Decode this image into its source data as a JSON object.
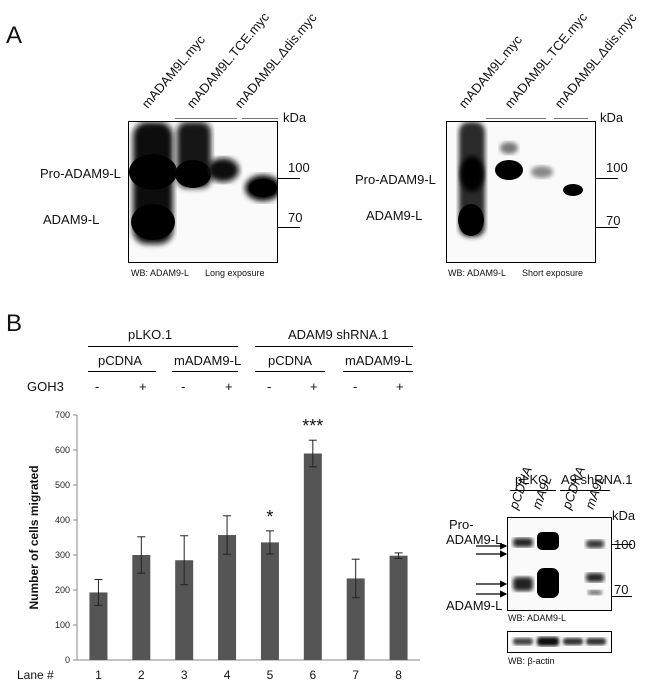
{
  "panelA": {
    "letter": "A",
    "left_blot": {
      "lanes": [
        "mADAM9L.myc",
        "mADAM9L.TCE.myc",
        "mADAM9L.Δdis.myc"
      ],
      "kda": "kDa",
      "marker_100": "100",
      "marker_70": "70",
      "pro_label": "Pro-ADAM9-L",
      "mature_label": "ADAM9-L",
      "wb_label": "WB: ADAM9-L",
      "exposure": "Long exposure"
    },
    "right_blot": {
      "lanes": [
        "mADAM9L.myc",
        "mADAM9L.TCE.myc",
        "mADAM9L.Δdis.myc"
      ],
      "kda": "kDa",
      "marker_100": "100",
      "marker_70": "70",
      "pro_label": "Pro-ADAM9-L",
      "mature_label": "ADAM9-L",
      "wb_label": "WB: ADAM9-L",
      "exposure": "Short exposure"
    }
  },
  "panelB": {
    "letter": "B",
    "header": {
      "group1": "pLKO.1",
      "group2": "ADAM9 shRNA.1",
      "sub": [
        "pCDNA",
        "mADAM9-L",
        "pCDNA",
        "mADAM9-L"
      ],
      "goh3_label": "GOH3",
      "goh3_signs": [
        "-",
        "+",
        "-",
        "+",
        "-",
        "+",
        "-",
        "+"
      ]
    },
    "small_blot": {
      "group1": "pLKO",
      "group2": "A9 shRNA.1",
      "lanes": [
        "pCDNA",
        "mA9L",
        "pCDNA",
        "mA9L"
      ],
      "kda": "kDa",
      "marker_100": "100",
      "marker_70": "70",
      "pro_label_1": "Pro-",
      "pro_label_2": "ADAM9-L",
      "mature_label": "ADAM9-L",
      "wb_label": "WB: ADAM9-L",
      "actin_label": "WB: β-actin"
    }
  },
  "chart_data": {
    "type": "bar",
    "categories": [
      "1",
      "2",
      "3",
      "4",
      "5",
      "6",
      "7",
      "8"
    ],
    "values": [
      193,
      300,
      285,
      357,
      336,
      590,
      233,
      298
    ],
    "errors": [
      37,
      52,
      70,
      55,
      33,
      38,
      55,
      8
    ],
    "annotations": [
      {
        "category": "5",
        "text": "*"
      },
      {
        "category": "6",
        "text": "***"
      }
    ],
    "xlabel": "Lane #",
    "ylabel": "Number of cells migrated",
    "ylim": [
      0,
      700
    ],
    "yticks": [
      0,
      100,
      200,
      300,
      400,
      500,
      600,
      700
    ],
    "bar_color": "#555555"
  }
}
